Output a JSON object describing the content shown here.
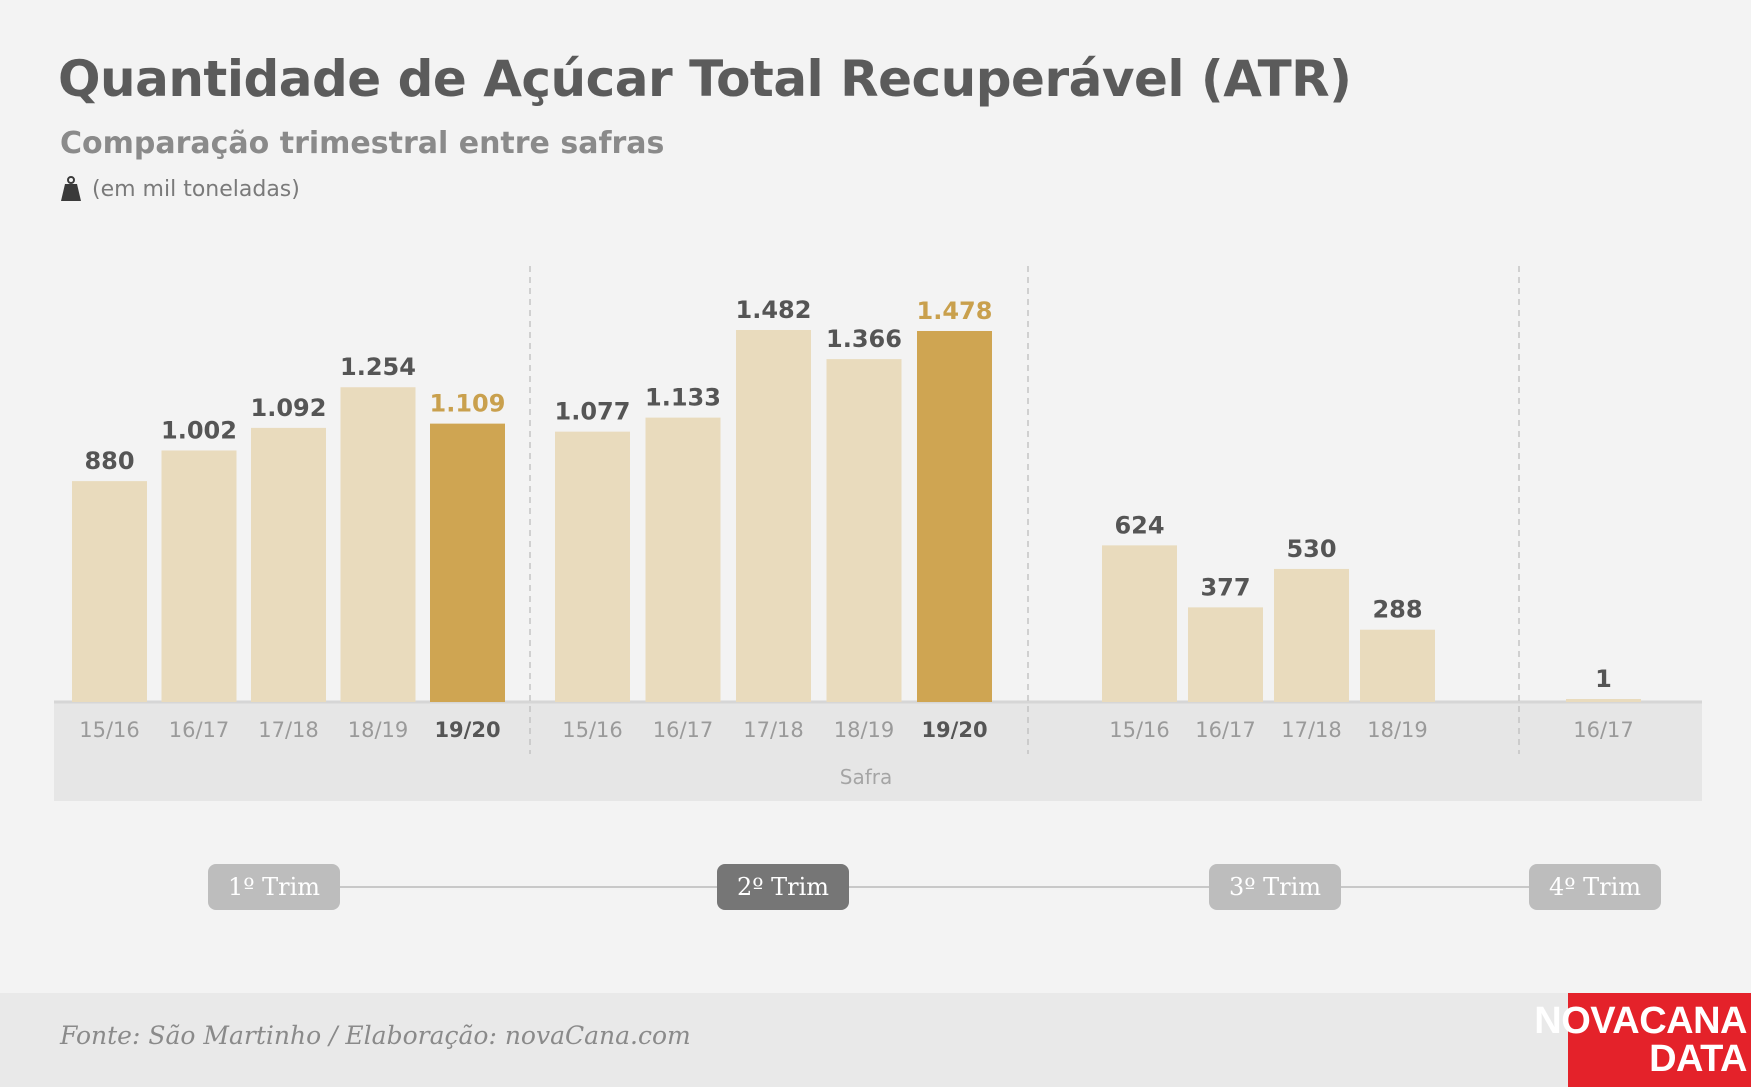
{
  "header": {
    "title": "Quantidade de Açúcar Total Recuperável (ATR)",
    "subtitle": "Comparação trimestral entre safras",
    "unit_note": "(em mil toneladas)",
    "unit_icon": "weight-icon"
  },
  "footer": {
    "source": "Fonte: São Martinho / Elaboração: novaCana.com",
    "logo_line1": "NOVACANA",
    "logo_line2": "DATA"
  },
  "colors": {
    "background": "#f3f3f3",
    "bar_light": "#e9dbbd",
    "bar_highlight": "#cfa552",
    "highlight_label": "#c9a04d",
    "value_label": "#555555",
    "tick_label": "#9a9a9a",
    "axis_band": "#e6e6e6",
    "pill_inactive": "#bdbdbd",
    "pill_active": "#767676",
    "logo_red": "#e4222a"
  },
  "chart_data": {
    "type": "bar",
    "xlabel": "Safra",
    "ylabel": "",
    "ylim": [
      0,
      1482
    ],
    "grid": false,
    "groups": [
      {
        "label": "1º Trim",
        "active": false,
        "bars": [
          {
            "category": "15/16",
            "value": 880,
            "value_label": "880",
            "highlight": false
          },
          {
            "category": "16/17",
            "value": 1002,
            "value_label": "1.002",
            "highlight": false
          },
          {
            "category": "17/18",
            "value": 1092,
            "value_label": "1.092",
            "highlight": false
          },
          {
            "category": "18/19",
            "value": 1254,
            "value_label": "1.254",
            "highlight": false
          },
          {
            "category": "19/20",
            "value": 1109,
            "value_label": "1.109",
            "highlight": true
          }
        ]
      },
      {
        "label": "2º Trim",
        "active": true,
        "bars": [
          {
            "category": "15/16",
            "value": 1077,
            "value_label": "1.077",
            "highlight": false
          },
          {
            "category": "16/17",
            "value": 1133,
            "value_label": "1.133",
            "highlight": false
          },
          {
            "category": "17/18",
            "value": 1482,
            "value_label": "1.482",
            "highlight": false
          },
          {
            "category": "18/19",
            "value": 1366,
            "value_label": "1.366",
            "highlight": false
          },
          {
            "category": "19/20",
            "value": 1478,
            "value_label": "1.478",
            "highlight": true
          }
        ]
      },
      {
        "label": "3º Trim",
        "active": false,
        "bars": [
          {
            "category": "15/16",
            "value": 624,
            "value_label": "624",
            "highlight": false
          },
          {
            "category": "16/17",
            "value": 377,
            "value_label": "377",
            "highlight": false
          },
          {
            "category": "17/18",
            "value": 530,
            "value_label": "530",
            "highlight": false
          },
          {
            "category": "18/19",
            "value": 288,
            "value_label": "288",
            "highlight": false
          }
        ]
      },
      {
        "label": "4º Trim",
        "active": false,
        "bars": [
          {
            "category": "16/17",
            "value": 1,
            "value_label": "1",
            "highlight": false
          }
        ]
      }
    ]
  }
}
